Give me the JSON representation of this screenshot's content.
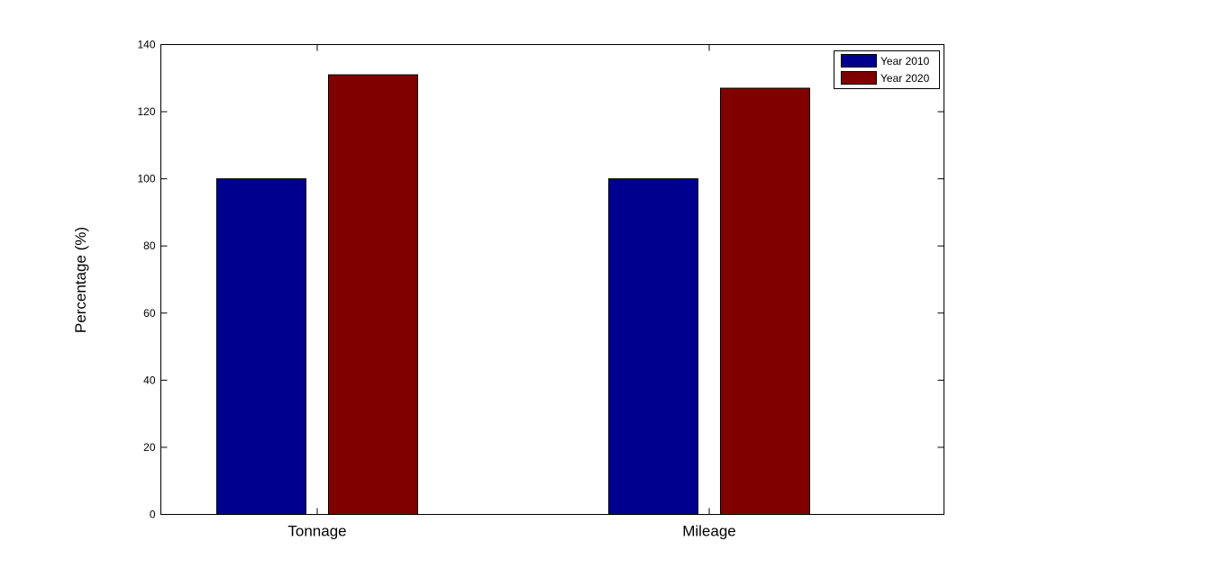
{
  "chart_data": {
    "type": "bar",
    "categories": [
      "Tonnage",
      "Mileage"
    ],
    "series": [
      {
        "name": "Year 2010",
        "values": [
          100,
          100
        ],
        "color": "#00008F"
      },
      {
        "name": "Year 2020",
        "values": [
          131,
          127
        ],
        "color": "#800000"
      }
    ],
    "title": "",
    "xlabel": "",
    "ylabel": "Percentage (%)",
    "ylim": [
      0,
      140
    ],
    "yticks": [
      0,
      20,
      40,
      60,
      80,
      100,
      120,
      140
    ],
    "grid": false,
    "legend_position": "top-right"
  }
}
